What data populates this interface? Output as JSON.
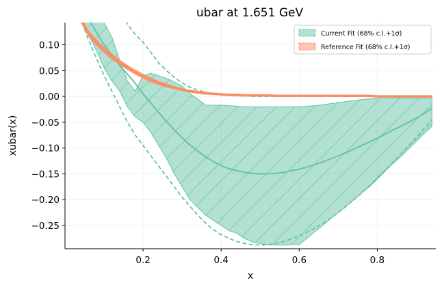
{
  "chart_data": {
    "type": "line",
    "title": "ubar at 1.651 GeV",
    "xlabel": "x",
    "ylabel": "xubar(x)",
    "xlim": [
      0.0,
      0.95
    ],
    "ylim": [
      -0.295,
      0.143
    ],
    "xticks": [
      0.2,
      0.4,
      0.6,
      0.8
    ],
    "xtick_labels": [
      "0.2",
      "0.4",
      "0.6",
      "0.8"
    ],
    "yticks": [
      0.1,
      0.05,
      0.0,
      -0.05,
      -0.1,
      -0.15,
      -0.2,
      -0.25
    ],
    "ytick_labels": [
      "0.10",
      "0.05",
      "0.00",
      "−0.05",
      "−0.10",
      "−0.15",
      "−0.20",
      "−0.25"
    ],
    "grid": true,
    "legend_position": "top-right",
    "colors": {
      "current_fit": "#66c2a5",
      "reference_fit": "#fc8d62",
      "grid": "#eeeeee"
    },
    "series": [
      {
        "name": "Current Fit (68% c.l.+1σ)",
        "x": [
          0.0,
          0.04,
          0.06,
          0.08,
          0.1,
          0.12,
          0.14,
          0.16,
          0.18,
          0.2,
          0.22,
          0.24,
          0.26,
          0.28,
          0.3,
          0.32,
          0.34,
          0.36,
          0.38,
          0.4,
          0.42,
          0.44,
          0.46,
          0.48,
          0.5,
          0.52,
          0.54,
          0.56,
          0.58,
          0.6,
          0.62,
          0.64,
          0.66,
          0.68,
          0.7,
          0.72,
          0.74,
          0.76,
          0.78,
          0.8,
          0.82,
          0.84,
          0.86,
          0.88,
          0.9,
          0.92,
          0.94
        ],
        "central": [
          0.3,
          0.18,
          0.15,
          0.125,
          0.1,
          0.08,
          0.06,
          0.043,
          0.025,
          0.005,
          -0.013,
          -0.031,
          -0.049,
          -0.065,
          -0.08,
          -0.094,
          -0.106,
          -0.117,
          -0.126,
          -0.134,
          -0.14,
          -0.144,
          -0.147,
          -0.149,
          -0.15,
          -0.15,
          -0.149,
          -0.147,
          -0.144,
          -0.141,
          -0.137,
          -0.132,
          -0.127,
          -0.121,
          -0.115,
          -0.109,
          -0.102,
          -0.095,
          -0.088,
          -0.081,
          -0.073,
          -0.065,
          -0.058,
          -0.05,
          -0.042,
          -0.033,
          -0.023
        ],
        "upper": [
          0.4,
          0.26,
          0.2,
          0.175,
          0.143,
          0.115,
          0.07,
          0.03,
          0.01,
          0.04,
          0.045,
          0.04,
          0.035,
          0.028,
          0.02,
          0.005,
          -0.005,
          -0.017,
          -0.017,
          -0.017,
          -0.018,
          -0.019,
          -0.02,
          -0.02,
          -0.02,
          -0.02,
          -0.02,
          -0.02,
          -0.02,
          -0.02,
          -0.019,
          -0.018,
          -0.016,
          -0.014,
          -0.012,
          -0.01,
          -0.008,
          -0.006,
          -0.005,
          -0.004,
          -0.004,
          -0.003,
          -0.003,
          -0.003,
          -0.003,
          -0.003,
          -0.003
        ],
        "lower": [
          0.25,
          0.16,
          0.12,
          0.09,
          0.055,
          0.03,
          0.01,
          -0.02,
          -0.04,
          -0.05,
          -0.07,
          -0.095,
          -0.12,
          -0.15,
          -0.175,
          -0.2,
          -0.215,
          -0.23,
          -0.24,
          -0.25,
          -0.26,
          -0.265,
          -0.275,
          -0.282,
          -0.285,
          -0.287,
          -0.288,
          -0.288,
          -0.287,
          -0.287,
          -0.275,
          -0.262,
          -0.25,
          -0.237,
          -0.225,
          -0.212,
          -0.2,
          -0.187,
          -0.175,
          -0.16,
          -0.145,
          -0.13,
          -0.117,
          -0.102,
          -0.087,
          -0.072,
          -0.058
        ],
        "outer_upper": [
          0.38,
          0.3,
          0.25,
          0.23,
          0.21,
          0.19,
          0.165,
          0.14,
          0.12,
          0.105,
          0.085,
          0.065,
          0.05,
          0.037,
          0.026,
          0.018,
          0.012,
          0.008,
          0.005,
          0.003,
          0.002,
          0.001,
          0.001,
          0.0,
          0.0,
          0.0,
          0.0,
          0.0,
          0.0,
          0.0,
          0.0,
          0.0,
          0.0,
          0.0,
          0.0,
          0.0,
          0.0,
          0.0,
          0.0,
          0.0,
          0.0,
          0.0,
          0.0,
          0.0,
          0.0,
          0.0,
          0.0
        ],
        "outer_lower": [
          0.25,
          0.15,
          0.11,
          0.075,
          0.04,
          0.01,
          -0.02,
          -0.05,
          -0.075,
          -0.095,
          -0.115,
          -0.135,
          -0.155,
          -0.175,
          -0.195,
          -0.213,
          -0.23,
          -0.245,
          -0.258,
          -0.268,
          -0.275,
          -0.281,
          -0.285,
          -0.287,
          -0.288,
          -0.287,
          -0.285,
          -0.281,
          -0.276,
          -0.27,
          -0.263,
          -0.255,
          -0.246,
          -0.236,
          -0.225,
          -0.213,
          -0.2,
          -0.187,
          -0.173,
          -0.158,
          -0.143,
          -0.128,
          -0.112,
          -0.096,
          -0.08,
          -0.062,
          -0.045
        ]
      },
      {
        "name": "Reference Fit (68% c.l.+1σ)",
        "x": [
          0.0,
          0.04,
          0.06,
          0.08,
          0.1,
          0.12,
          0.14,
          0.16,
          0.18,
          0.2,
          0.22,
          0.24,
          0.26,
          0.28,
          0.3,
          0.32,
          0.34,
          0.36,
          0.38,
          0.4,
          0.42,
          0.44,
          0.46,
          0.48,
          0.5,
          0.52,
          0.54,
          0.56,
          0.58,
          0.6,
          0.62,
          0.64,
          0.66,
          0.68,
          0.7,
          0.72,
          0.74,
          0.76,
          0.78,
          0.8,
          0.82,
          0.84,
          0.86,
          0.88,
          0.9,
          0.92,
          0.94
        ],
        "central": [
          0.3,
          0.15,
          0.122,
          0.105,
          0.09,
          0.077,
          0.066,
          0.056,
          0.047,
          0.039,
          0.032,
          0.026,
          0.021,
          0.017,
          0.013,
          0.01,
          0.008,
          0.006,
          0.005,
          0.004,
          0.003,
          0.003,
          0.002,
          0.002,
          0.002,
          0.002,
          0.001,
          0.001,
          0.001,
          0.001,
          0.001,
          0.001,
          0.001,
          0.001,
          0.001,
          0.001,
          0.001,
          0.001,
          0.001,
          0.0,
          0.0,
          0.0,
          0.0,
          0.0,
          0.0,
          0.0,
          0.0
        ],
        "upper": [
          0.305,
          0.155,
          0.127,
          0.11,
          0.095,
          0.082,
          0.07,
          0.06,
          0.051,
          0.043,
          0.036,
          0.029,
          0.024,
          0.019,
          0.015,
          0.012,
          0.01,
          0.008,
          0.006,
          0.005,
          0.004,
          0.004,
          0.003,
          0.003,
          0.003,
          0.003,
          0.002,
          0.002,
          0.002,
          0.002,
          0.002,
          0.002,
          0.002,
          0.002,
          0.002,
          0.002,
          0.002,
          0.002,
          0.002,
          0.001,
          0.001,
          0.001,
          0.001,
          0.001,
          0.001,
          0.001,
          0.001
        ],
        "lower": [
          0.295,
          0.145,
          0.117,
          0.1,
          0.085,
          0.072,
          0.062,
          0.052,
          0.043,
          0.035,
          0.028,
          0.023,
          0.018,
          0.015,
          0.011,
          0.008,
          0.006,
          0.004,
          0.004,
          0.003,
          0.002,
          0.002,
          0.001,
          0.001,
          0.001,
          0.001,
          0.0,
          0.0,
          0.0,
          0.0,
          0.0,
          0.0,
          0.0,
          0.0,
          0.0,
          0.0,
          0.0,
          0.0,
          0.0,
          -0.001,
          -0.001,
          -0.001,
          -0.001,
          -0.001,
          -0.001,
          -0.001,
          -0.001
        ]
      }
    ]
  }
}
